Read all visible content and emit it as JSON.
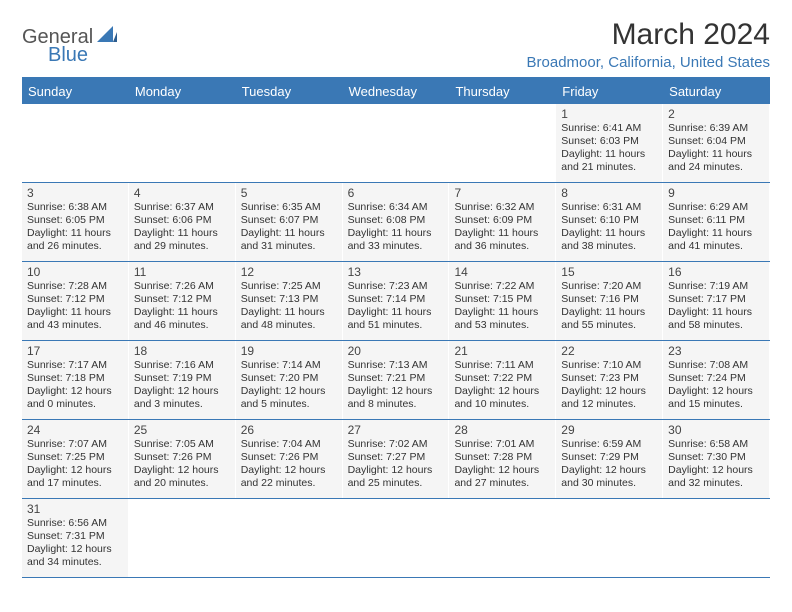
{
  "logo": {
    "part1": "General",
    "part2": "Blue",
    "accent_color": "#3a78b5"
  },
  "title": "March 2024",
  "location": "Broadmoor, California, United States",
  "colors": {
    "header_bg": "#3a78b5",
    "header_text": "#ffffff",
    "cell_bg": "#f5f5f5",
    "text": "#333333",
    "title_fontsize": 30,
    "location_fontsize": 15,
    "dayhead_fontsize": 13,
    "daynum_fontsize": 12,
    "info_fontsize": 10.5
  },
  "day_names": [
    "Sunday",
    "Monday",
    "Tuesday",
    "Wednesday",
    "Thursday",
    "Friday",
    "Saturday"
  ],
  "weeks": [
    [
      null,
      null,
      null,
      null,
      null,
      {
        "n": "1",
        "sunrise": "6:41 AM",
        "sunset": "6:03 PM",
        "daylight": "11 hours and 21 minutes."
      },
      {
        "n": "2",
        "sunrise": "6:39 AM",
        "sunset": "6:04 PM",
        "daylight": "11 hours and 24 minutes."
      }
    ],
    [
      {
        "n": "3",
        "sunrise": "6:38 AM",
        "sunset": "6:05 PM",
        "daylight": "11 hours and 26 minutes."
      },
      {
        "n": "4",
        "sunrise": "6:37 AM",
        "sunset": "6:06 PM",
        "daylight": "11 hours and 29 minutes."
      },
      {
        "n": "5",
        "sunrise": "6:35 AM",
        "sunset": "6:07 PM",
        "daylight": "11 hours and 31 minutes."
      },
      {
        "n": "6",
        "sunrise": "6:34 AM",
        "sunset": "6:08 PM",
        "daylight": "11 hours and 33 minutes."
      },
      {
        "n": "7",
        "sunrise": "6:32 AM",
        "sunset": "6:09 PM",
        "daylight": "11 hours and 36 minutes."
      },
      {
        "n": "8",
        "sunrise": "6:31 AM",
        "sunset": "6:10 PM",
        "daylight": "11 hours and 38 minutes."
      },
      {
        "n": "9",
        "sunrise": "6:29 AM",
        "sunset": "6:11 PM",
        "daylight": "11 hours and 41 minutes."
      }
    ],
    [
      {
        "n": "10",
        "sunrise": "7:28 AM",
        "sunset": "7:12 PM",
        "daylight": "11 hours and 43 minutes."
      },
      {
        "n": "11",
        "sunrise": "7:26 AM",
        "sunset": "7:12 PM",
        "daylight": "11 hours and 46 minutes."
      },
      {
        "n": "12",
        "sunrise": "7:25 AM",
        "sunset": "7:13 PM",
        "daylight": "11 hours and 48 minutes."
      },
      {
        "n": "13",
        "sunrise": "7:23 AM",
        "sunset": "7:14 PM",
        "daylight": "11 hours and 51 minutes."
      },
      {
        "n": "14",
        "sunrise": "7:22 AM",
        "sunset": "7:15 PM",
        "daylight": "11 hours and 53 minutes."
      },
      {
        "n": "15",
        "sunrise": "7:20 AM",
        "sunset": "7:16 PM",
        "daylight": "11 hours and 55 minutes."
      },
      {
        "n": "16",
        "sunrise": "7:19 AM",
        "sunset": "7:17 PM",
        "daylight": "11 hours and 58 minutes."
      }
    ],
    [
      {
        "n": "17",
        "sunrise": "7:17 AM",
        "sunset": "7:18 PM",
        "daylight": "12 hours and 0 minutes."
      },
      {
        "n": "18",
        "sunrise": "7:16 AM",
        "sunset": "7:19 PM",
        "daylight": "12 hours and 3 minutes."
      },
      {
        "n": "19",
        "sunrise": "7:14 AM",
        "sunset": "7:20 PM",
        "daylight": "12 hours and 5 minutes."
      },
      {
        "n": "20",
        "sunrise": "7:13 AM",
        "sunset": "7:21 PM",
        "daylight": "12 hours and 8 minutes."
      },
      {
        "n": "21",
        "sunrise": "7:11 AM",
        "sunset": "7:22 PM",
        "daylight": "12 hours and 10 minutes."
      },
      {
        "n": "22",
        "sunrise": "7:10 AM",
        "sunset": "7:23 PM",
        "daylight": "12 hours and 12 minutes."
      },
      {
        "n": "23",
        "sunrise": "7:08 AM",
        "sunset": "7:24 PM",
        "daylight": "12 hours and 15 minutes."
      }
    ],
    [
      {
        "n": "24",
        "sunrise": "7:07 AM",
        "sunset": "7:25 PM",
        "daylight": "12 hours and 17 minutes."
      },
      {
        "n": "25",
        "sunrise": "7:05 AM",
        "sunset": "7:26 PM",
        "daylight": "12 hours and 20 minutes."
      },
      {
        "n": "26",
        "sunrise": "7:04 AM",
        "sunset": "7:26 PM",
        "daylight": "12 hours and 22 minutes."
      },
      {
        "n": "27",
        "sunrise": "7:02 AM",
        "sunset": "7:27 PM",
        "daylight": "12 hours and 25 minutes."
      },
      {
        "n": "28",
        "sunrise": "7:01 AM",
        "sunset": "7:28 PM",
        "daylight": "12 hours and 27 minutes."
      },
      {
        "n": "29",
        "sunrise": "6:59 AM",
        "sunset": "7:29 PM",
        "daylight": "12 hours and 30 minutes."
      },
      {
        "n": "30",
        "sunrise": "6:58 AM",
        "sunset": "7:30 PM",
        "daylight": "12 hours and 32 minutes."
      }
    ],
    [
      {
        "n": "31",
        "sunrise": "6:56 AM",
        "sunset": "7:31 PM",
        "daylight": "12 hours and 34 minutes."
      },
      null,
      null,
      null,
      null,
      null,
      null
    ]
  ],
  "labels": {
    "sunrise": "Sunrise: ",
    "sunset": "Sunset: ",
    "daylight": "Daylight: "
  }
}
